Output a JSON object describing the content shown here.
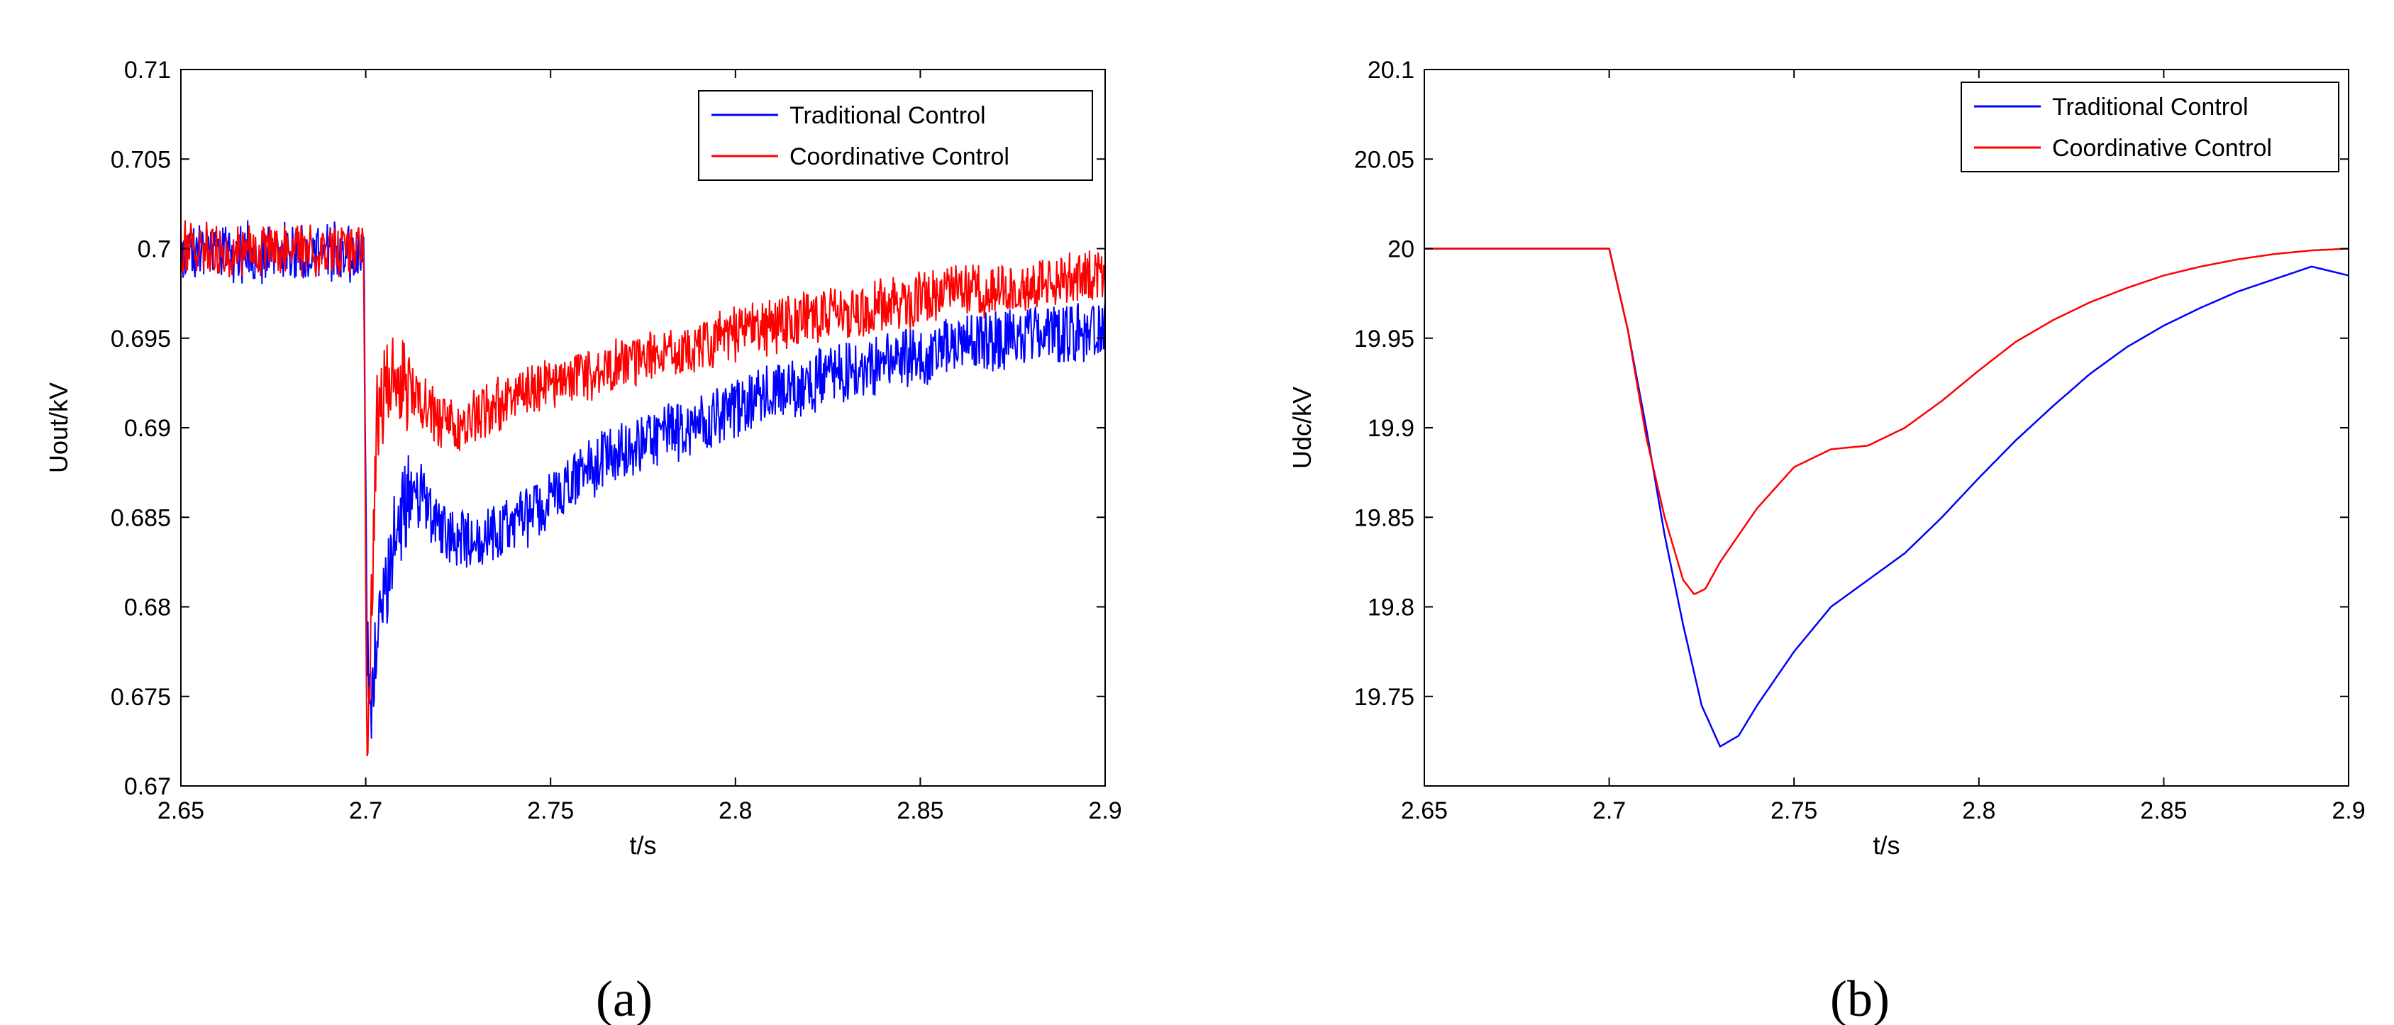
{
  "chart_data": [
    {
      "type": "line",
      "panel_label": "(a)",
      "xlabel": "t/s",
      "ylabel": "Uout/kV",
      "xlim": [
        2.65,
        2.9
      ],
      "ylim": [
        0.67,
        0.71
      ],
      "xticks": [
        "2.65",
        "2.7",
        "2.75",
        "2.8",
        "2.85",
        "2.9"
      ],
      "yticks": [
        "0.67",
        "0.675",
        "0.68",
        "0.685",
        "0.69",
        "0.695",
        "0.7",
        "0.705",
        "0.71"
      ],
      "legend": {
        "position": "top-right",
        "entries": [
          "Traditional Control",
          "Coordinative Control"
        ]
      },
      "series": [
        {
          "name": "Traditional Control",
          "color": "#0000ff",
          "noise_amplitude": 0.0018,
          "points": [
            [
              2.65,
              0.6998
            ],
            [
              2.6995,
              0.6998
            ],
            [
              2.7003,
              0.6785
            ],
            [
              2.7012,
              0.6745
            ],
            [
              2.703,
              0.678
            ],
            [
              2.706,
              0.682
            ],
            [
              2.71,
              0.6855
            ],
            [
              2.715,
              0.6862
            ],
            [
              2.72,
              0.6845
            ],
            [
              2.73,
              0.6835
            ],
            [
              2.74,
              0.6845
            ],
            [
              2.75,
              0.686
            ],
            [
              2.76,
              0.6877
            ],
            [
              2.78,
              0.6895
            ],
            [
              2.8,
              0.6912
            ],
            [
              2.82,
              0.6925
            ],
            [
              2.84,
              0.6937
            ],
            [
              2.86,
              0.6945
            ],
            [
              2.88,
              0.6952
            ],
            [
              2.9,
              0.6955
            ]
          ]
        },
        {
          "name": "Coordinative Control",
          "color": "#ff0000",
          "noise_amplitude": 0.0016,
          "points": [
            [
              2.65,
              0.7
            ],
            [
              2.6995,
              0.7
            ],
            [
              2.7003,
              0.6717
            ],
            [
              2.7012,
              0.6775
            ],
            [
              2.703,
              0.6905
            ],
            [
              2.706,
              0.6925
            ],
            [
              2.71,
              0.6925
            ],
            [
              2.72,
              0.6905
            ],
            [
              2.725,
              0.69
            ],
            [
              2.73,
              0.6908
            ],
            [
              2.75,
              0.6925
            ],
            [
              2.77,
              0.6935
            ],
            [
              2.8,
              0.6952
            ],
            [
              2.83,
              0.6965
            ],
            [
              2.86,
              0.6975
            ],
            [
              2.9,
              0.6985
            ]
          ]
        }
      ]
    },
    {
      "type": "line",
      "panel_label": "(b)",
      "xlabel": "t/s",
      "ylabel": "Udc/kV",
      "xlim": [
        2.65,
        2.9
      ],
      "ylim": [
        19.7,
        20.1
      ],
      "xticks": [
        "2.65",
        "2.7",
        "2.75",
        "2.8",
        "2.85",
        "2.9"
      ],
      "yticks": [
        "19.75",
        "19.8",
        "19.85",
        "19.9",
        "19.95",
        "20",
        "20.05",
        "20.1"
      ],
      "legend": {
        "position": "top-right",
        "entries": [
          "Traditional Control",
          "Coordinative Control"
        ]
      },
      "series": [
        {
          "name": "Traditional Control",
          "color": "#0000ff",
          "points": [
            [
              2.65,
              20.0
            ],
            [
              2.7,
              20.0
            ],
            [
              2.705,
              19.955
            ],
            [
              2.71,
              19.9
            ],
            [
              2.715,
              19.84
            ],
            [
              2.72,
              19.79
            ],
            [
              2.725,
              19.745
            ],
            [
              2.73,
              19.722
            ],
            [
              2.735,
              19.728
            ],
            [
              2.74,
              19.745
            ],
            [
              2.75,
              19.775
            ],
            [
              2.76,
              19.8
            ],
            [
              2.77,
              19.815
            ],
            [
              2.78,
              19.83
            ],
            [
              2.79,
              19.85
            ],
            [
              2.8,
              19.872
            ],
            [
              2.81,
              19.893
            ],
            [
              2.82,
              19.912
            ],
            [
              2.83,
              19.93
            ],
            [
              2.84,
              19.945
            ],
            [
              2.85,
              19.957
            ],
            [
              2.86,
              19.967
            ],
            [
              2.87,
              19.976
            ],
            [
              2.88,
              19.983
            ],
            [
              2.89,
              19.99
            ],
            [
              2.9,
              19.985
            ]
          ]
        },
        {
          "name": "Coordinative Control",
          "color": "#ff0000",
          "points": [
            [
              2.65,
              20.0
            ],
            [
              2.7,
              20.0
            ],
            [
              2.705,
              19.955
            ],
            [
              2.71,
              19.895
            ],
            [
              2.715,
              19.85
            ],
            [
              2.72,
              19.815
            ],
            [
              2.723,
              19.807
            ],
            [
              2.726,
              19.81
            ],
            [
              2.73,
              19.825
            ],
            [
              2.74,
              19.855
            ],
            [
              2.75,
              19.878
            ],
            [
              2.76,
              19.888
            ],
            [
              2.77,
              19.89
            ],
            [
              2.78,
              19.9
            ],
            [
              2.79,
              19.915
            ],
            [
              2.8,
              19.932
            ],
            [
              2.81,
              19.948
            ],
            [
              2.82,
              19.96
            ],
            [
              2.83,
              19.97
            ],
            [
              2.84,
              19.978
            ],
            [
              2.85,
              19.985
            ],
            [
              2.86,
              19.99
            ],
            [
              2.87,
              19.994
            ],
            [
              2.88,
              19.997
            ],
            [
              2.89,
              19.999
            ],
            [
              2.9,
              20.0
            ]
          ]
        }
      ]
    }
  ]
}
